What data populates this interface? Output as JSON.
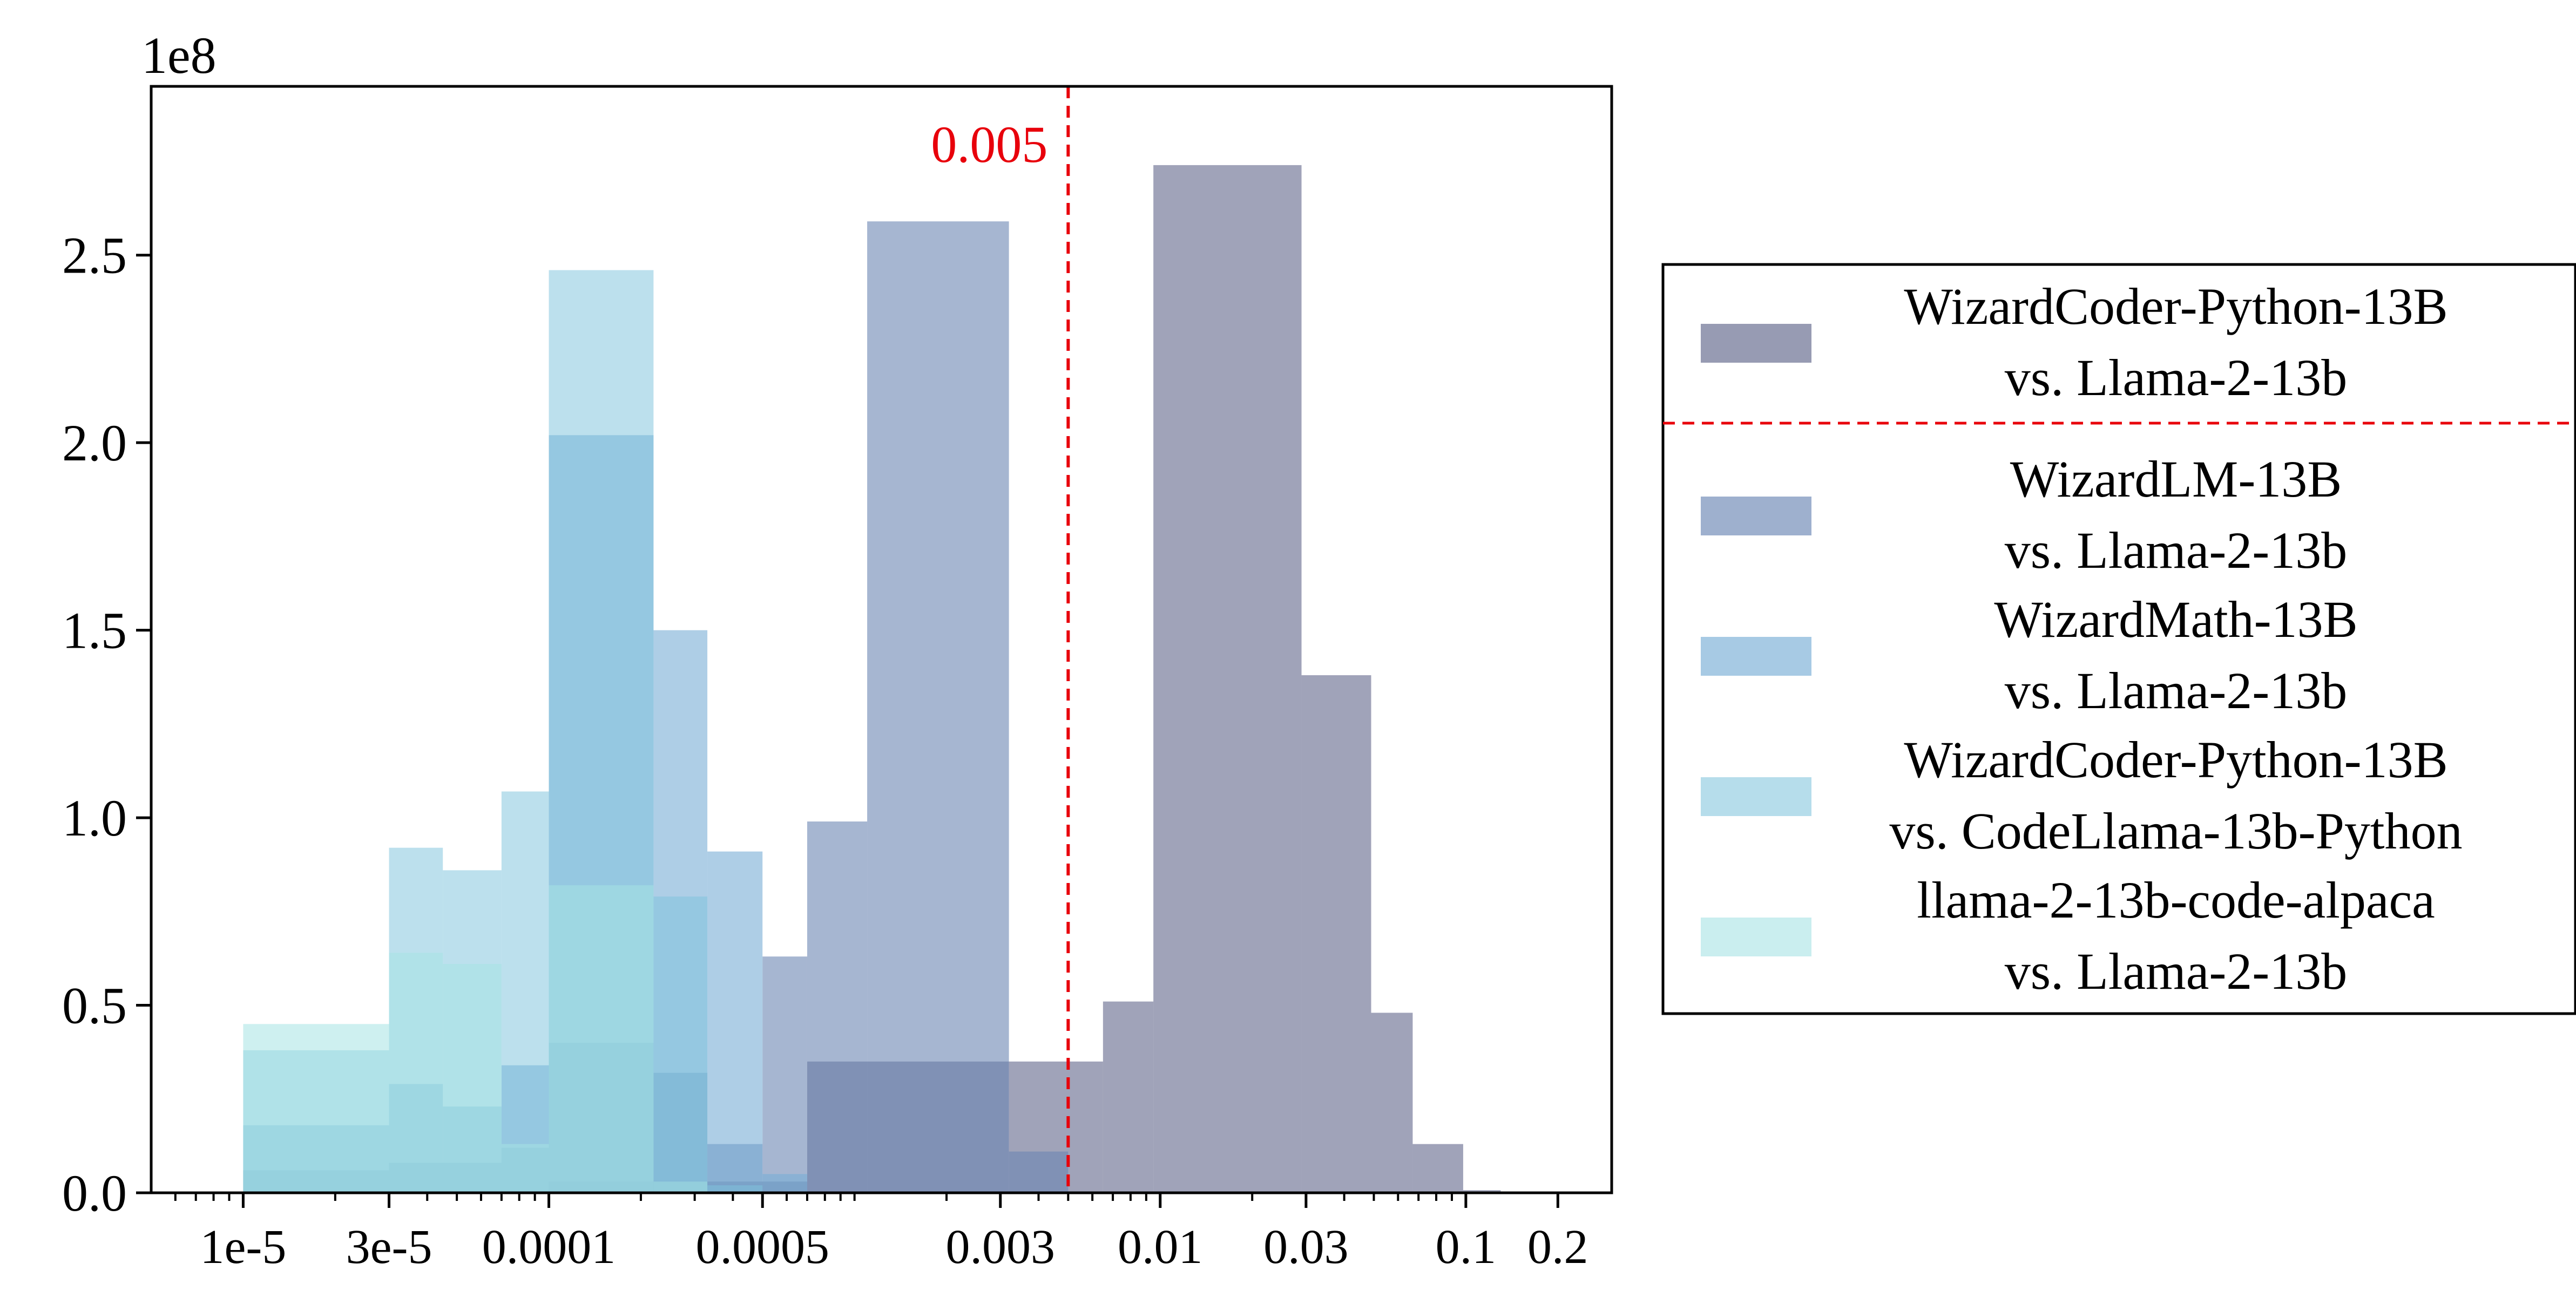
{
  "chart_data": {
    "type": "histogram",
    "x_scale": "log",
    "xlim": [
      5e-06,
      0.3
    ],
    "ylim": [
      0,
      295000000
    ],
    "y_multiplier_label": "1e8",
    "x_tick_values": [
      1e-05,
      3e-05,
      0.0001,
      0.0005,
      0.003,
      0.01,
      0.03,
      0.1,
      0.2
    ],
    "x_tick_labels": [
      "1e-5",
      "3e-5",
      "0.0001",
      "0.0005",
      "0.003",
      "0.01",
      "0.03",
      "0.1",
      "0.2"
    ],
    "y_tick_values": [
      0,
      50000000,
      100000000,
      150000000,
      200000000,
      250000000
    ],
    "y_tick_labels": [
      "0.0",
      "0.5",
      "1.0",
      "1.5",
      "2.0",
      "2.5"
    ],
    "threshold": {
      "value": 0.005,
      "label": "0.005",
      "color": "#e8000b"
    },
    "legend": {
      "position": "right",
      "divider_after_index": 0,
      "divider_color": "#e8000b"
    },
    "series": [
      {
        "name_line1": "WizardCoder-Python-13B",
        "name_line2": "vs. Llama-2-13b",
        "color": "#5b6086",
        "opacity": 0.58,
        "bins": [
          {
            "x0": 0.0001,
            "x1": 0.00022,
            "y": 3000000
          },
          {
            "x0": 0.00022,
            "x1": 0.0007,
            "y": 3000000
          },
          {
            "x0": 0.0007,
            "x1": 0.0011,
            "y": 35000000
          },
          {
            "x0": 0.0011,
            "x1": 0.0032,
            "y": 35000000
          },
          {
            "x0": 0.0032,
            "x1": 0.0065,
            "y": 35000000
          },
          {
            "x0": 0.0065,
            "x1": 0.0095,
            "y": 51000000
          },
          {
            "x0": 0.0095,
            "x1": 0.029,
            "y": 274000000
          },
          {
            "x0": 0.029,
            "x1": 0.049,
            "y": 138000000
          },
          {
            "x0": 0.049,
            "x1": 0.067,
            "y": 48000000
          },
          {
            "x0": 0.067,
            "x1": 0.098,
            "y": 13000000
          },
          {
            "x0": 0.098,
            "x1": 0.13,
            "y": 700000
          }
        ]
      },
      {
        "name_line1": "WizardLM-13B",
        "name_line2": "vs. Llama-2-13b",
        "color": "#6a86b3",
        "opacity": 0.6,
        "bins": [
          {
            "x0": 1e-05,
            "x1": 3e-05,
            "y": 6000000
          },
          {
            "x0": 3e-05,
            "x1": 4.5e-05,
            "y": 8000000
          },
          {
            "x0": 4.5e-05,
            "x1": 7e-05,
            "y": 8000000
          },
          {
            "x0": 7e-05,
            "x1": 0.0001,
            "y": 12000000
          },
          {
            "x0": 0.0001,
            "x1": 0.00022,
            "y": 40000000
          },
          {
            "x0": 0.00022,
            "x1": 0.00033,
            "y": 32000000
          },
          {
            "x0": 0.00033,
            "x1": 0.0005,
            "y": 13000000
          },
          {
            "x0": 0.0005,
            "x1": 0.0007,
            "y": 63000000
          },
          {
            "x0": 0.0007,
            "x1": 0.0011,
            "y": 99000000
          },
          {
            "x0": 0.0011,
            "x1": 0.0032,
            "y": 259000000
          },
          {
            "x0": 0.0032,
            "x1": 0.005,
            "y": 11000000
          }
        ]
      },
      {
        "name_line1": "WizardMath-13B",
        "name_line2": "vs. Llama-2-13b",
        "color": "#78aed5",
        "opacity": 0.6,
        "bins": [
          {
            "x0": 1e-05,
            "x1": 3e-05,
            "y": 18000000
          },
          {
            "x0": 3e-05,
            "x1": 4.5e-05,
            "y": 29000000
          },
          {
            "x0": 4.5e-05,
            "x1": 7e-05,
            "y": 23000000
          },
          {
            "x0": 7e-05,
            "x1": 0.0001,
            "y": 34000000
          },
          {
            "x0": 0.0001,
            "x1": 0.00022,
            "y": 202000000
          },
          {
            "x0": 0.00022,
            "x1": 0.00033,
            "y": 150000000
          },
          {
            "x0": 0.00033,
            "x1": 0.0005,
            "y": 91000000
          },
          {
            "x0": 0.0005,
            "x1": 0.0007,
            "y": 5000000
          }
        ]
      },
      {
        "name_line1": "WizardCoder-Python-13B",
        "name_line2": "vs. CodeLlama-13b-Python",
        "color": "#7fc3dc",
        "opacity": 0.52,
        "bins": [
          {
            "x0": 1e-05,
            "x1": 3e-05,
            "y": 38000000
          },
          {
            "x0": 3e-05,
            "x1": 4.5e-05,
            "y": 92000000
          },
          {
            "x0": 4.5e-05,
            "x1": 7e-05,
            "y": 86000000
          },
          {
            "x0": 7e-05,
            "x1": 0.0001,
            "y": 107000000
          },
          {
            "x0": 0.0001,
            "x1": 0.00022,
            "y": 246000000
          },
          {
            "x0": 0.00022,
            "x1": 0.00033,
            "y": 79000000
          },
          {
            "x0": 0.00033,
            "x1": 0.0005,
            "y": 2000000
          }
        ]
      },
      {
        "name_line1": "llama-2-13b-code-alpaca",
        "name_line2": "vs. Llama-2-13b",
        "color": "#a6e3e4",
        "opacity": 0.55,
        "bins": [
          {
            "x0": 1e-05,
            "x1": 3e-05,
            "y": 45000000
          },
          {
            "x0": 3e-05,
            "x1": 4.5e-05,
            "y": 64000000
          },
          {
            "x0": 4.5e-05,
            "x1": 7e-05,
            "y": 61000000
          },
          {
            "x0": 7e-05,
            "x1": 0.0001,
            "y": 13000000
          },
          {
            "x0": 0.0001,
            "x1": 0.00022,
            "y": 82000000
          },
          {
            "x0": 0.00022,
            "x1": 0.00033,
            "y": 3000000
          }
        ]
      }
    ]
  }
}
